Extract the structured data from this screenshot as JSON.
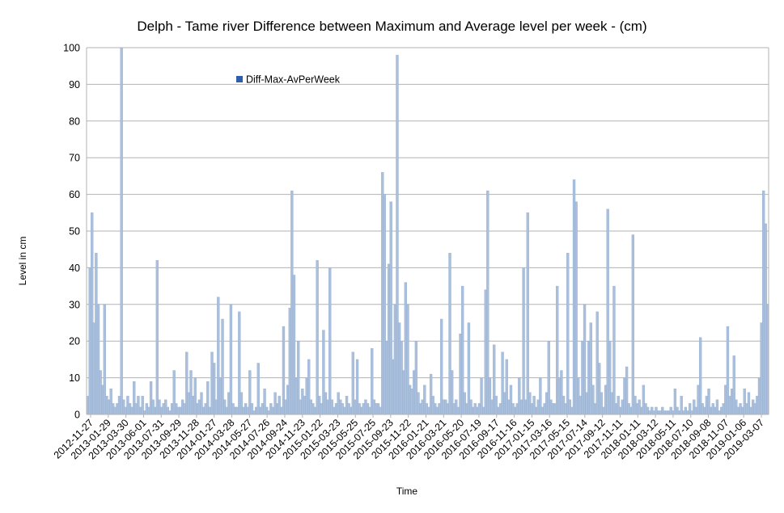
{
  "chart_data": {
    "type": "area",
    "title": "Delph - Tame river Difference between Maximum and Average level per week  - (cm)",
    "xlabel": "Time",
    "ylabel": "Level in cm",
    "ylim": [
      0,
      100
    ],
    "yticks": [
      0,
      10,
      20,
      30,
      40,
      50,
      60,
      70,
      80,
      90,
      100
    ],
    "grid": true,
    "legend_position": "top-left",
    "colors": {
      "series": "#a9bfdc",
      "series_edge": "#8aa6cc",
      "legend_marker": "#2d5fa8",
      "grid": "#b3b3b3"
    },
    "xticks": [
      "2012-11-27",
      "2013-01-29",
      "2013-03-30",
      "2013-06-01",
      "2013-07-31",
      "2013-09-29",
      "2013-11-28",
      "2014-01-27",
      "2014-03-28",
      "2014-05-27",
      "2014-07-26",
      "2014-09-24",
      "2014-11-23",
      "2015-01-22",
      "2015-03-23",
      "2015-05-25",
      "2015-07-25",
      "2015-09-23",
      "2015-11-22",
      "2016-01-21",
      "2016-03-21",
      "2016-05-20",
      "2016-07-19",
      "2016-09-17",
      "2016-11-16",
      "2017-01-15",
      "2017-03-16",
      "2017-05-15",
      "2017-07-14",
      "2017-09-12",
      "2017-11-11",
      "2018-01-11",
      "2018-03-12",
      "2018-05-11",
      "2018-07-10",
      "2018-09-08",
      "2018-11-07",
      "2019-01-06",
      "2019-03-07"
    ],
    "series": [
      {
        "name": "Diff-Max-AvPerWeek",
        "values": [
          5,
          40,
          55,
          25,
          44,
          30,
          12,
          8,
          30,
          5,
          4,
          7,
          3,
          2,
          3,
          5,
          100,
          4,
          2,
          5,
          3,
          2,
          9,
          3,
          5,
          2,
          5,
          1,
          3,
          2,
          9,
          4,
          2,
          42,
          4,
          2,
          3,
          4,
          2,
          1,
          3,
          12,
          3,
          2,
          2,
          4,
          3,
          17,
          6,
          12,
          5,
          10,
          3,
          4,
          6,
          2,
          3,
          9,
          2,
          17,
          14,
          4,
          32,
          10,
          26,
          4,
          2,
          6,
          30,
          3,
          2,
          2,
          28,
          6,
          2,
          3,
          2,
          12,
          3,
          1,
          2,
          14,
          2,
          3,
          7,
          2,
          1,
          3,
          2,
          6,
          3,
          5,
          2,
          24,
          4,
          8,
          29,
          61,
          38,
          10,
          20,
          4,
          7,
          5,
          10,
          15,
          4,
          3,
          2,
          42,
          5,
          3,
          23,
          6,
          4,
          40,
          4,
          2,
          3,
          6,
          4,
          3,
          2,
          5,
          3,
          2,
          17,
          4,
          15,
          3,
          2,
          3,
          4,
          3,
          2,
          18,
          4,
          3,
          3,
          2,
          66,
          60,
          20,
          41,
          58,
          15,
          30,
          98,
          25,
          20,
          12,
          36,
          30,
          8,
          7,
          12,
          20,
          6,
          3,
          4,
          8,
          3,
          2,
          11,
          5,
          3,
          2,
          3,
          26,
          4,
          4,
          3,
          44,
          12,
          3,
          4,
          2,
          22,
          35,
          6,
          3,
          25,
          4,
          2,
          3,
          2,
          3,
          10,
          2,
          34,
          61,
          10,
          4,
          19,
          5,
          2,
          3,
          17,
          6,
          15,
          4,
          8,
          3,
          2,
          3,
          10,
          4,
          40,
          4,
          55,
          6,
          3,
          5,
          2,
          4,
          10,
          2,
          3,
          6,
          20,
          4,
          3,
          3,
          35,
          10,
          12,
          5,
          3,
          44,
          4,
          2,
          64,
          58,
          10,
          5,
          20,
          30,
          6,
          20,
          25,
          8,
          3,
          28,
          14,
          6,
          2,
          8,
          56,
          20,
          6,
          35,
          3,
          5,
          2,
          4,
          10,
          13,
          3,
          2,
          49,
          5,
          3,
          4,
          2,
          8,
          3,
          2,
          1,
          2,
          1,
          2,
          1,
          1,
          2,
          1,
          1,
          1,
          2,
          1,
          7,
          2,
          1,
          5,
          1,
          2,
          1,
          3,
          1,
          4,
          2,
          8,
          21,
          3,
          2,
          5,
          7,
          2,
          3,
          2,
          4,
          1,
          2,
          3,
          8,
          24,
          5,
          7,
          16,
          4,
          2,
          3,
          2,
          7,
          3,
          6,
          2,
          4,
          3,
          5,
          10,
          25,
          61,
          52,
          30
        ]
      }
    ]
  }
}
